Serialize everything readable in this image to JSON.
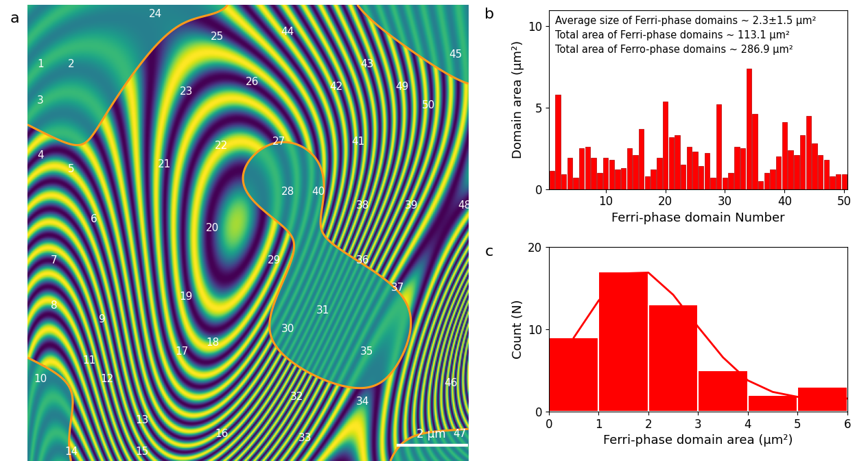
{
  "chart_data": [
    {
      "type": "image",
      "title": "a",
      "annotations": [
        "1",
        "2",
        "3",
        "4",
        "5",
        "6",
        "7",
        "8",
        "9",
        "10",
        "11",
        "12",
        "13",
        "14",
        "15",
        "16",
        "17",
        "18",
        "19",
        "20",
        "21",
        "22",
        "23",
        "24",
        "25",
        "26",
        "27",
        "28",
        "29",
        "30",
        "31",
        "32",
        "33",
        "34",
        "35",
        "36",
        "37",
        "38",
        "39",
        "40",
        "41",
        "42",
        "43",
        "44",
        "45",
        "46",
        "47",
        "48",
        "49",
        "50"
      ],
      "scale_bar": "2 μm"
    },
    {
      "type": "bar",
      "title": "b",
      "annotations": [
        "Average size of Ferri-phase domains ~ 2.3±1.5 μm²",
        "Total area of Ferri-phase domains ~ 113.1 μm²",
        "Total area of Ferro-phase domains ~ 286.9 μm²"
      ],
      "x": [
        1,
        2,
        3,
        4,
        5,
        6,
        7,
        8,
        9,
        10,
        11,
        12,
        13,
        14,
        15,
        16,
        17,
        18,
        19,
        20,
        21,
        22,
        23,
        24,
        25,
        26,
        27,
        28,
        29,
        30,
        31,
        32,
        33,
        34,
        35,
        36,
        37,
        38,
        39,
        40,
        41,
        42,
        43,
        44,
        45,
        46,
        47,
        48,
        49,
        50
      ],
      "values": [
        1.1,
        5.8,
        0.9,
        1.9,
        0.7,
        2.5,
        2.6,
        1.9,
        1.0,
        1.9,
        1.8,
        1.2,
        1.3,
        2.5,
        2.1,
        3.7,
        0.8,
        1.2,
        1.9,
        5.4,
        3.2,
        3.3,
        1.5,
        2.6,
        2.3,
        1.4,
        2.2,
        0.7,
        5.2,
        0.7,
        1.0,
        2.6,
        2.5,
        7.4,
        4.6,
        0.5,
        1.0,
        1.2,
        2.0,
        4.1,
        2.4,
        2.1,
        3.3,
        4.5,
        2.8,
        2.1,
        1.8,
        0.8,
        0.9,
        0.9
      ],
      "color": "#ff0000",
      "x_label": "Ferri-phase domain Number",
      "y_label": "Domain area (μm²)",
      "xlim": [
        0.5,
        50.5
      ],
      "xticks": [
        10,
        20,
        30,
        40,
        50
      ],
      "ylim": [
        0,
        11
      ],
      "yticks": [
        0,
        5,
        10
      ]
    },
    {
      "type": "histogram",
      "title": "c",
      "bins": [
        0,
        1,
        2,
        3,
        4,
        5,
        6
      ],
      "counts": [
        9,
        17,
        13,
        5,
        2,
        3
      ],
      "fit": {
        "x": [
          0.5,
          1.0,
          1.5,
          2.0,
          2.5,
          3.0,
          3.5,
          4.0,
          4.5,
          5.0,
          5.5,
          6.0
        ],
        "values": [
          9.0,
          13.5,
          16.8,
          16.9,
          14.2,
          10.3,
          6.6,
          3.8,
          2.4,
          1.8,
          1.6,
          1.6
        ]
      },
      "color": "#ff0000",
      "x_label": "Ferri-phase domain area (μm²)",
      "y_label": "Count (N)",
      "xlim": [
        0,
        6
      ],
      "xticks": [
        0,
        1,
        2,
        3,
        4,
        5,
        6
      ],
      "ylim": [
        0,
        20
      ],
      "yticks": [
        0,
        10,
        20
      ]
    }
  ]
}
